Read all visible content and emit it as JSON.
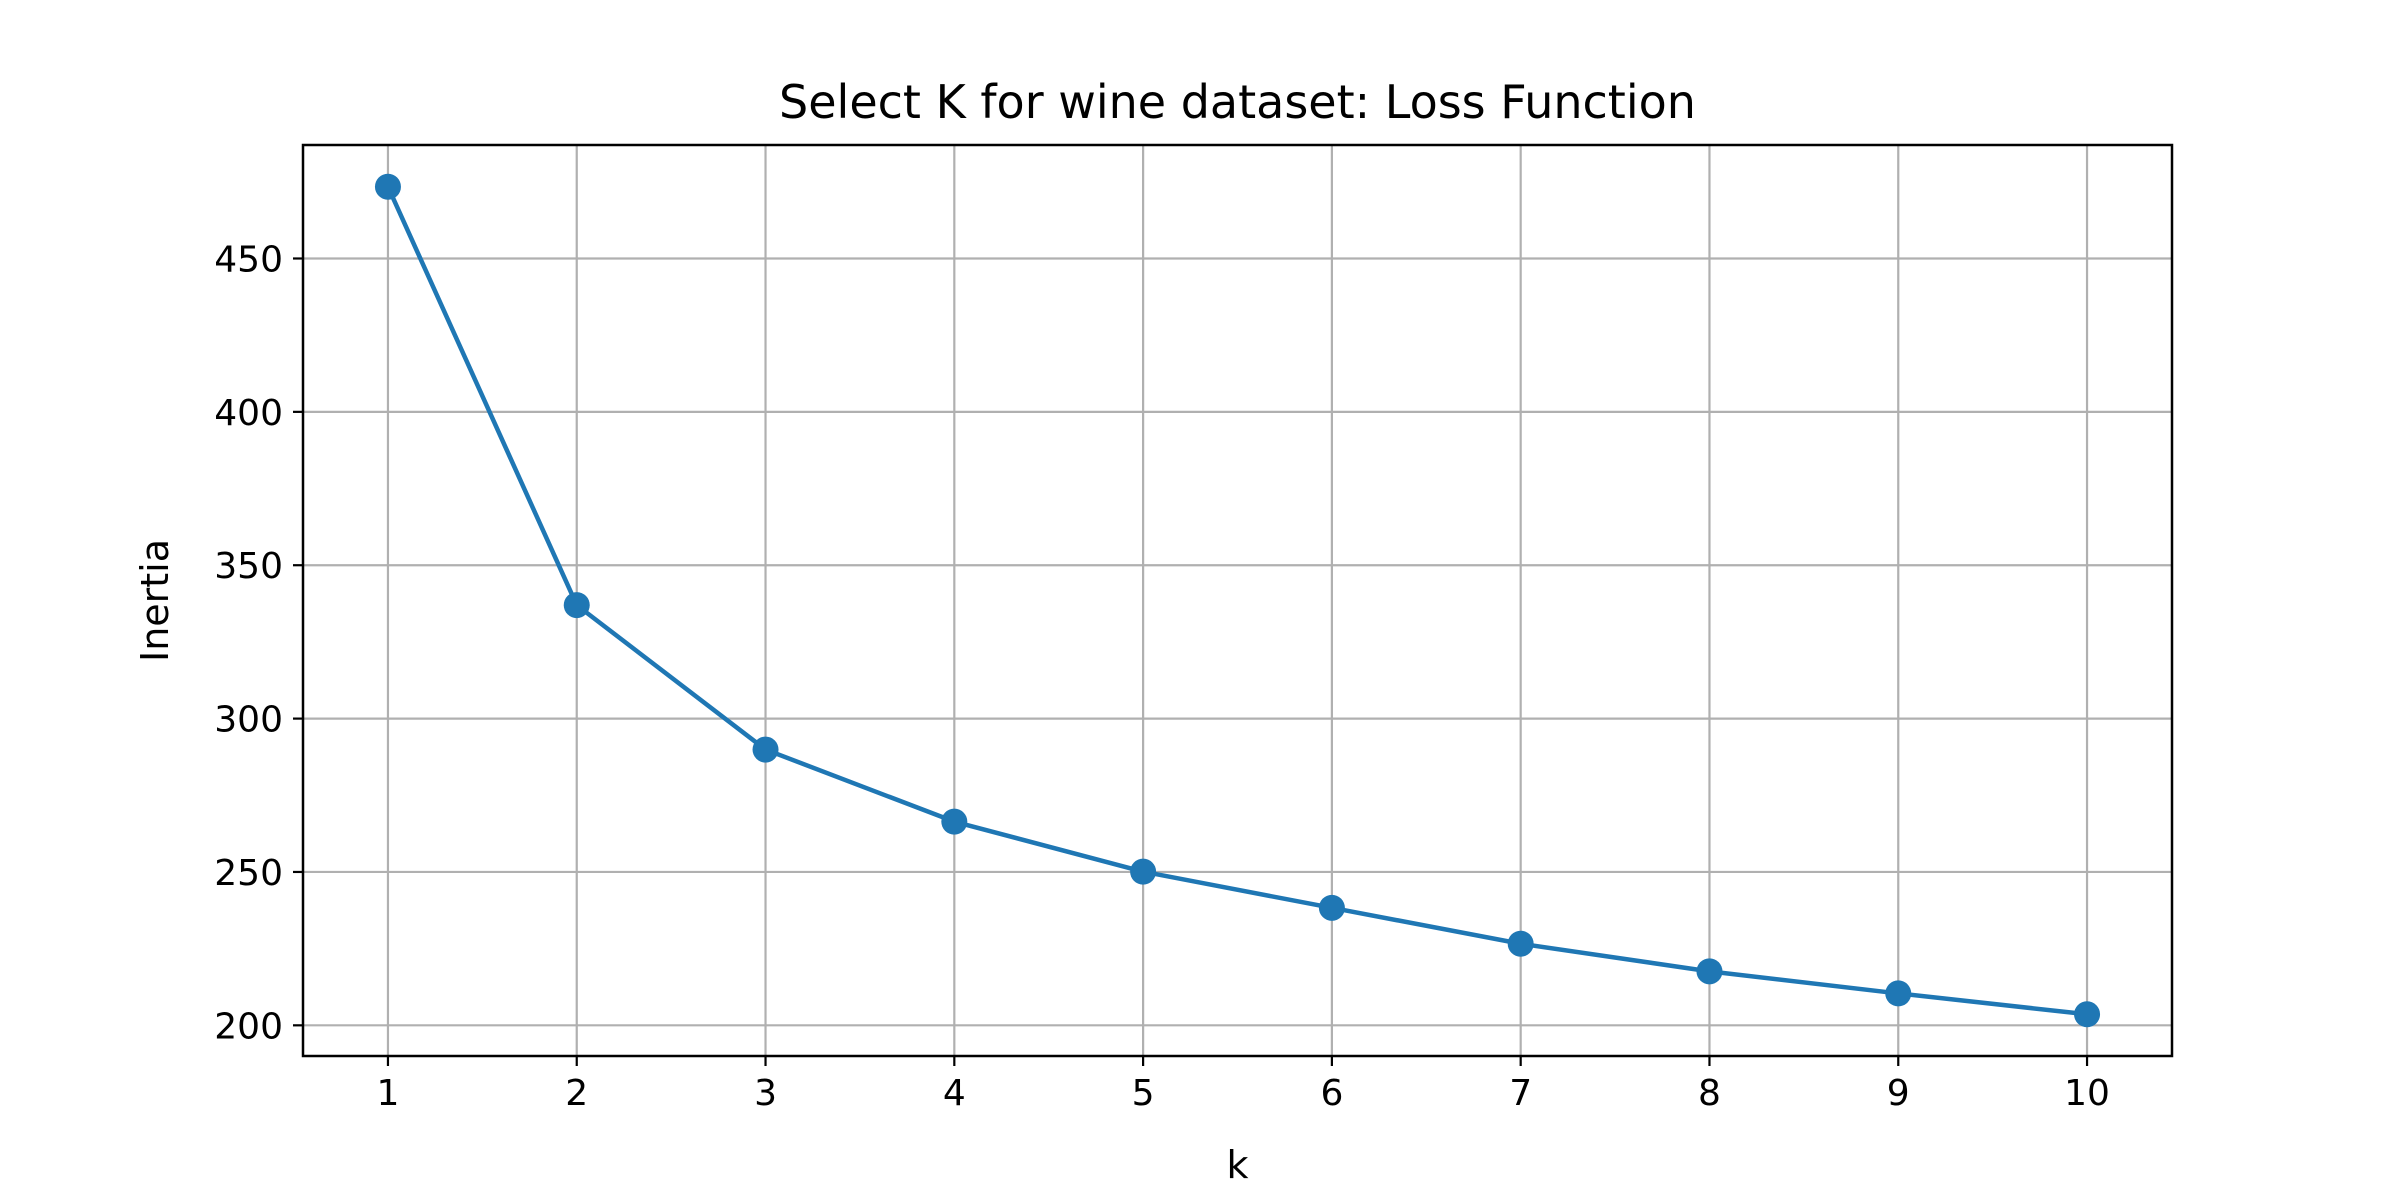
{
  "chart_data": {
    "type": "line",
    "title": "Select K for wine dataset: Loss Function",
    "xlabel": "k",
    "ylabel": "Inertia",
    "x": [
      1,
      2,
      3,
      4,
      5,
      6,
      7,
      8,
      9,
      10
    ],
    "series": [
      {
        "values": [
          473.4,
          337.0,
          289.9,
          266.4,
          250.1,
          238.3,
          226.6,
          217.6,
          210.4,
          203.6
        ],
        "color": "#1f77b4",
        "marker": "circle"
      }
    ],
    "xticks": [
      1,
      2,
      3,
      4,
      5,
      6,
      7,
      8,
      9,
      10
    ],
    "yticks": [
      200,
      250,
      300,
      350,
      400,
      450
    ],
    "xlim": [
      0.55,
      10.45
    ],
    "ylim": [
      190,
      487
    ],
    "grid": true,
    "legend": false
  }
}
